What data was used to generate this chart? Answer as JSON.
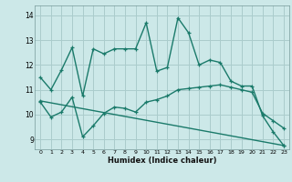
{
  "xlabel": "Humidex (Indice chaleur)",
  "xlim": [
    -0.5,
    23.5
  ],
  "ylim": [
    8.6,
    14.4
  ],
  "yticks": [
    9,
    10,
    11,
    12,
    13,
    14
  ],
  "xticks": [
    0,
    1,
    2,
    3,
    4,
    5,
    6,
    7,
    8,
    9,
    10,
    11,
    12,
    13,
    14,
    15,
    16,
    17,
    18,
    19,
    20,
    21,
    22,
    23
  ],
  "bg_color": "#cce8e8",
  "grid_color": "#aacccc",
  "line_color": "#1a7a6a",
  "line1_x": [
    0,
    1,
    2,
    3,
    4,
    5,
    6,
    7,
    8,
    9,
    10,
    11,
    12,
    13,
    14,
    15,
    16,
    17,
    18,
    19,
    20,
    21,
    22,
    23
  ],
  "line1_y": [
    11.5,
    11.0,
    11.8,
    12.7,
    10.75,
    12.65,
    12.45,
    12.65,
    12.65,
    12.65,
    13.7,
    11.75,
    11.9,
    13.9,
    13.3,
    12.0,
    12.2,
    12.1,
    11.35,
    11.15,
    11.15,
    9.95,
    9.3,
    8.75
  ],
  "line2_x": [
    0,
    1,
    2,
    3,
    4,
    5,
    6,
    7,
    8,
    9,
    10,
    11,
    12,
    13,
    14,
    15,
    16,
    17,
    18,
    19,
    20,
    21,
    22,
    23
  ],
  "line2_y": [
    10.5,
    9.9,
    10.1,
    10.7,
    9.1,
    9.55,
    10.05,
    10.3,
    10.25,
    10.1,
    10.5,
    10.6,
    10.75,
    11.0,
    11.05,
    11.1,
    11.15,
    11.2,
    11.1,
    11.0,
    10.9,
    10.05,
    9.75,
    9.45
  ],
  "line3_x": [
    0,
    23
  ],
  "line3_y": [
    10.55,
    8.75
  ]
}
